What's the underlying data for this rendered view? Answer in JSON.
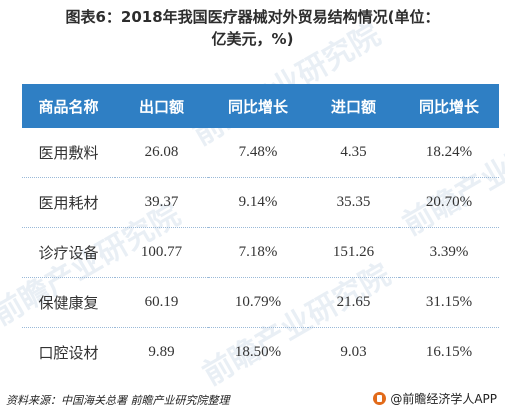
{
  "title": "图表6：2018年我国医疗器械对外贸易结构情况(单位：亿美元，%)",
  "table": {
    "headers": [
      "商品名称",
      "出口额",
      "同比增长",
      "进口额",
      "同比增长"
    ],
    "rows": [
      [
        "医用敷料",
        "26.08",
        "7.48%",
        "4.35",
        "18.24%"
      ],
      [
        "医用耗材",
        "39.37",
        "9.14%",
        "35.35",
        "20.70%"
      ],
      [
        "诊疗设备",
        "100.77",
        "7.18%",
        "151.26",
        "3.39%"
      ],
      [
        "保健康复",
        "60.19",
        "10.79%",
        "21.65",
        "31.15%"
      ],
      [
        "口腔设材",
        "9.89",
        "18.50%",
        "9.03",
        "16.15%"
      ]
    ]
  },
  "footer": {
    "source": "资料来源：中国海关总署 前瞻产业研究院整理",
    "brand": "@前瞻经济学人APP"
  },
  "watermarks": [
    "前瞻产业研究院",
    "前瞻产业研究院",
    "前瞻产业研究院",
    "前瞻产业研究院"
  ],
  "colors": {
    "header_bg": "#2f7fc4",
    "header_text": "#ffffff",
    "body_text": "#333333",
    "row_divider": "#9ab9d8"
  }
}
